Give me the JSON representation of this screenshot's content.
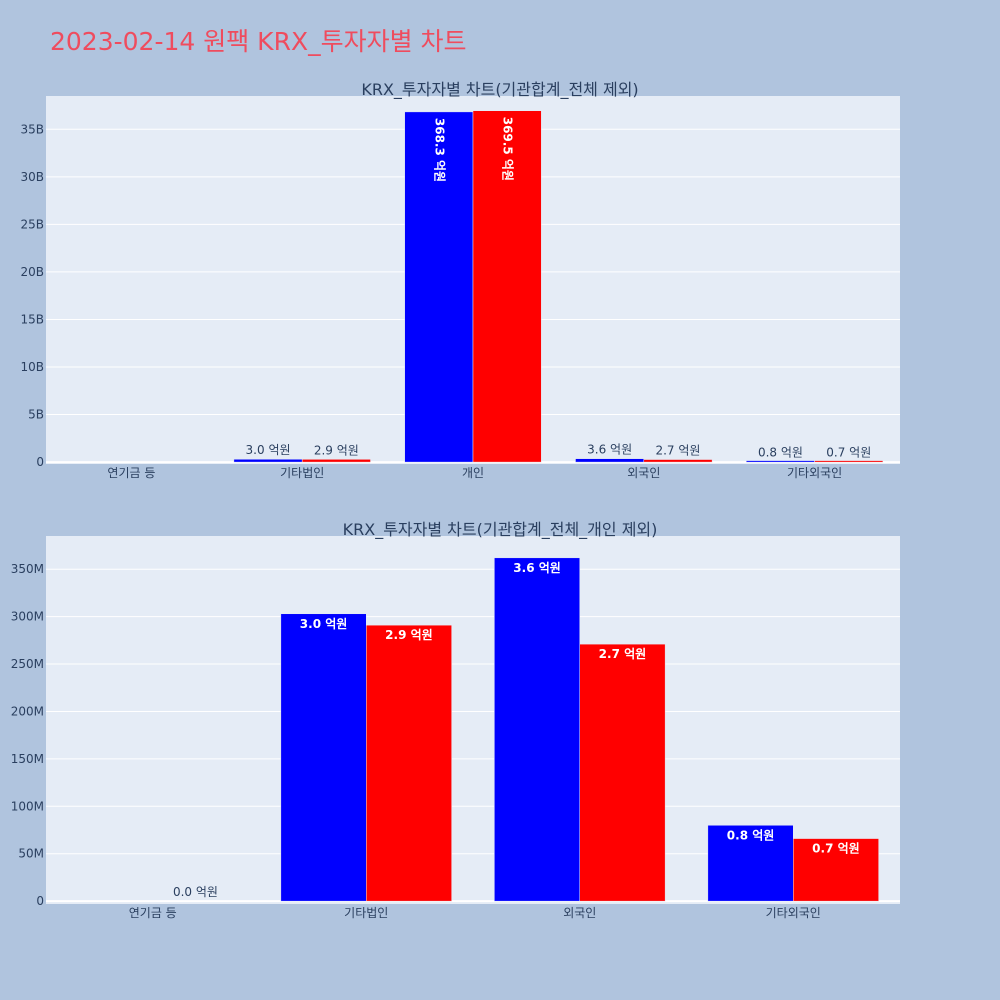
{
  "header": {
    "title": "2023-02-14 원팩 KRX_투자자별 차트"
  },
  "colors": {
    "buy": "#0000ff",
    "sell": "#ff0000",
    "plot_bg": "#e5ecf6",
    "page_bg": "#b0c4de",
    "title": "#ef4c5e"
  },
  "chart_data": [
    {
      "type": "bar",
      "title": "KRX_투자자별 차트(기관합계_전체 제외)",
      "categories": [
        "연기금 등",
        "기타법인",
        "개인",
        "외국인",
        "기타외국인"
      ],
      "series": [
        {
          "values": [
            0,
            300000000,
            36830000000,
            360000000,
            80000000
          ],
          "labels": [
            "",
            "3.0 억원",
            "368.3 억원",
            "3.6 억원",
            "0.8 억원"
          ]
        },
        {
          "values": [
            0,
            290000000,
            36950000000,
            270000000,
            70000000
          ],
          "labels": [
            "",
            "2.9 억원",
            "369.5 억원",
            "2.7 억원",
            "0.7 억원"
          ]
        }
      ],
      "ylim": [
        -200000000,
        38500000000
      ],
      "yticks": [
        0,
        5000000000,
        10000000000,
        15000000000,
        20000000000,
        25000000000,
        30000000000,
        35000000000
      ],
      "ytick_labels": [
        "0",
        "5B",
        "10B",
        "15B",
        "20B",
        "25B",
        "30B",
        "35B"
      ],
      "grid": true,
      "legend": "none"
    },
    {
      "type": "bar",
      "title": "KRX_투자자별 차트(기관합계_전체_개인 제외)",
      "categories": [
        "연기금 등",
        "기타법인",
        "외국인",
        "기타외국인"
      ],
      "series": [
        {
          "values": [
            0,
            303000000,
            362000000,
            80000000
          ],
          "labels": [
            "",
            "3.0 억원",
            "3.6 억원",
            "0.8 억원"
          ]
        },
        {
          "values": [
            0,
            291000000,
            271000000,
            66000000
          ],
          "labels": [
            "0.0 억원",
            "2.9 억원",
            "2.7 억원",
            "0.7 억원"
          ]
        }
      ],
      "ylim": [
        -3000000,
        385000000
      ],
      "yticks": [
        0,
        50000000,
        100000000,
        150000000,
        200000000,
        250000000,
        300000000,
        350000000
      ],
      "ytick_labels": [
        "0",
        "50M",
        "100M",
        "150M",
        "200M",
        "250M",
        "300M",
        "350M"
      ],
      "grid": true,
      "legend": "none"
    }
  ]
}
